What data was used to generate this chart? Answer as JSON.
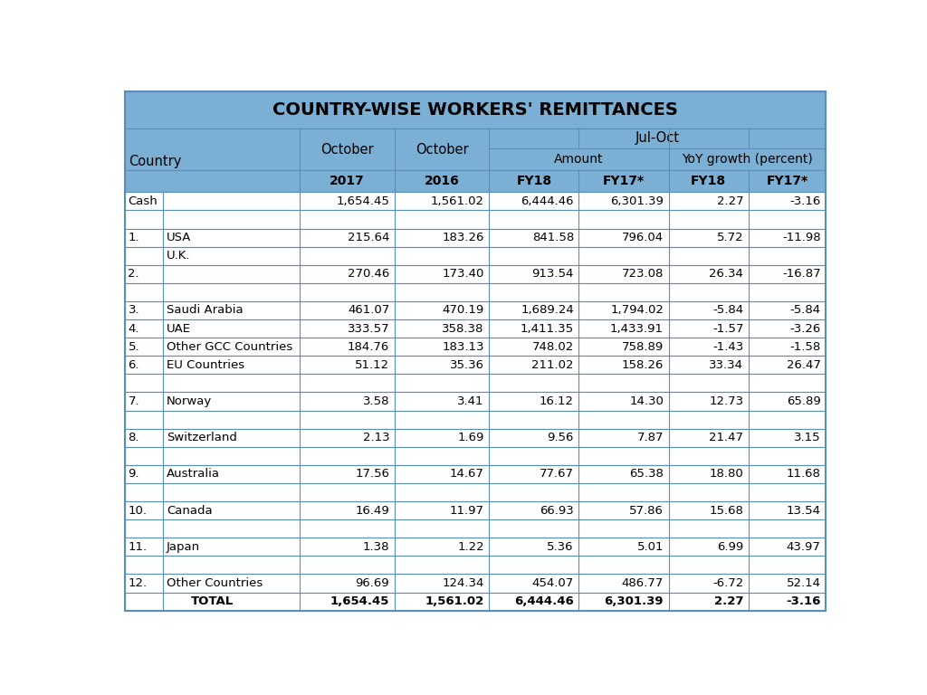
{
  "title": "COUNTRY-WISE WORKERS' REMITTANCES",
  "header_bg": "#7BAFD4",
  "border_color": "#5B8DB8",
  "text_color": "#000000",
  "rows": [
    {
      "num": "",
      "country": "Cash",
      "oct2017": "1,654.45",
      "oct2016": "1,561.02",
      "fy18": "6,444.46",
      "fy17": "6,301.39",
      "yoy_fy18": "2.27",
      "yoy_fy17": "-3.16",
      "bold": false,
      "cash": true
    },
    {
      "num": "",
      "country": "",
      "oct2017": "",
      "oct2016": "",
      "fy18": "",
      "fy17": "",
      "yoy_fy18": "",
      "yoy_fy17": "",
      "bold": false,
      "cash": false
    },
    {
      "num": "1.",
      "country": "USA",
      "oct2017": "215.64",
      "oct2016": "183.26",
      "fy18": "841.58",
      "fy17": "796.04",
      "yoy_fy18": "5.72",
      "yoy_fy17": "-11.98",
      "bold": false,
      "cash": false
    },
    {
      "num": "",
      "country": "U.K.",
      "oct2017": "",
      "oct2016": "",
      "fy18": "",
      "fy17": "",
      "yoy_fy18": "",
      "yoy_fy17": "",
      "bold": false,
      "cash": false
    },
    {
      "num": "2.",
      "country": "",
      "oct2017": "270.46",
      "oct2016": "173.40",
      "fy18": "913.54",
      "fy17": "723.08",
      "yoy_fy18": "26.34",
      "yoy_fy17": "-16.87",
      "bold": false,
      "cash": false
    },
    {
      "num": "",
      "country": "",
      "oct2017": "",
      "oct2016": "",
      "fy18": "",
      "fy17": "",
      "yoy_fy18": "",
      "yoy_fy17": "",
      "bold": false,
      "cash": false
    },
    {
      "num": "3.",
      "country": "Saudi Arabia",
      "oct2017": "461.07",
      "oct2016": "470.19",
      "fy18": "1,689.24",
      "fy17": "1,794.02",
      "yoy_fy18": "-5.84",
      "yoy_fy17": "-5.84",
      "bold": false,
      "cash": false
    },
    {
      "num": "4.",
      "country": "UAE",
      "oct2017": "333.57",
      "oct2016": "358.38",
      "fy18": "1,411.35",
      "fy17": "1,433.91",
      "yoy_fy18": "-1.57",
      "yoy_fy17": "-3.26",
      "bold": false,
      "cash": false
    },
    {
      "num": "5.",
      "country": "Other GCC Countries",
      "oct2017": "184.76",
      "oct2016": "183.13",
      "fy18": "748.02",
      "fy17": "758.89",
      "yoy_fy18": "-1.43",
      "yoy_fy17": "-1.58",
      "bold": false,
      "cash": false
    },
    {
      "num": "6.",
      "country": "EU Countries",
      "oct2017": "51.12",
      "oct2016": "35.36",
      "fy18": "211.02",
      "fy17": "158.26",
      "yoy_fy18": "33.34",
      "yoy_fy17": "26.47",
      "bold": false,
      "cash": false
    },
    {
      "num": "",
      "country": "",
      "oct2017": "",
      "oct2016": "",
      "fy18": "",
      "fy17": "",
      "yoy_fy18": "",
      "yoy_fy17": "",
      "bold": false,
      "cash": false
    },
    {
      "num": "7.",
      "country": "Norway",
      "oct2017": "3.58",
      "oct2016": "3.41",
      "fy18": "16.12",
      "fy17": "14.30",
      "yoy_fy18": "12.73",
      "yoy_fy17": "65.89",
      "bold": false,
      "cash": false
    },
    {
      "num": "",
      "country": "",
      "oct2017": "",
      "oct2016": "",
      "fy18": "",
      "fy17": "",
      "yoy_fy18": "",
      "yoy_fy17": "",
      "bold": false,
      "cash": false
    },
    {
      "num": "8.",
      "country": "Switzerland",
      "oct2017": "2.13",
      "oct2016": "1.69",
      "fy18": "9.56",
      "fy17": "7.87",
      "yoy_fy18": "21.47",
      "yoy_fy17": "3.15",
      "bold": false,
      "cash": false
    },
    {
      "num": "",
      "country": "",
      "oct2017": "",
      "oct2016": "",
      "fy18": "",
      "fy17": "",
      "yoy_fy18": "",
      "yoy_fy17": "",
      "bold": false,
      "cash": false
    },
    {
      "num": "9.",
      "country": "Australia",
      "oct2017": "17.56",
      "oct2016": "14.67",
      "fy18": "77.67",
      "fy17": "65.38",
      "yoy_fy18": "18.80",
      "yoy_fy17": "11.68",
      "bold": false,
      "cash": false
    },
    {
      "num": "",
      "country": "",
      "oct2017": "",
      "oct2016": "",
      "fy18": "",
      "fy17": "",
      "yoy_fy18": "",
      "yoy_fy17": "",
      "bold": false,
      "cash": false
    },
    {
      "num": "10.",
      "country": "Canada",
      "oct2017": "16.49",
      "oct2016": "11.97",
      "fy18": "66.93",
      "fy17": "57.86",
      "yoy_fy18": "15.68",
      "yoy_fy17": "13.54",
      "bold": false,
      "cash": false
    },
    {
      "num": "",
      "country": "",
      "oct2017": "",
      "oct2016": "",
      "fy18": "",
      "fy17": "",
      "yoy_fy18": "",
      "yoy_fy17": "",
      "bold": false,
      "cash": false
    },
    {
      "num": "11.",
      "country": "Japan",
      "oct2017": "1.38",
      "oct2016": "1.22",
      "fy18": "5.36",
      "fy17": "5.01",
      "yoy_fy18": "6.99",
      "yoy_fy17": "43.97",
      "bold": false,
      "cash": false
    },
    {
      "num": "",
      "country": "",
      "oct2017": "",
      "oct2016": "",
      "fy18": "",
      "fy17": "",
      "yoy_fy18": "",
      "yoy_fy17": "",
      "bold": false,
      "cash": false
    },
    {
      "num": "12.",
      "country": "Other Countries",
      "oct2017": "96.69",
      "oct2016": "124.34",
      "fy18": "454.07",
      "fy17": "486.77",
      "yoy_fy18": "-6.72",
      "yoy_fy17": "52.14",
      "bold": false,
      "cash": false
    },
    {
      "num": "",
      "country": "TOTAL",
      "oct2017": "1,654.45",
      "oct2016": "1,561.02",
      "fy18": "6,444.46",
      "fy17": "6,301.39",
      "yoy_fy18": "2.27",
      "yoy_fy17": "-3.16",
      "bold": true,
      "cash": false
    }
  ],
  "figsize": [
    10.24,
    7.68
  ],
  "dpi": 100
}
